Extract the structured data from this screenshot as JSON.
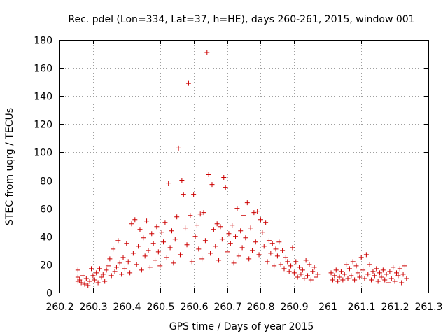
{
  "chart_data": {
    "type": "scatter",
    "title": "Rec. pdel (Lon=334, Lat=37, h=HE), days 260-261, 2015, window 001",
    "xlabel": "GPS time / Days of year 2015",
    "ylabel": "STEC from uqrg / TECUs",
    "xlim": [
      260.2,
      261.3
    ],
    "ylim": [
      0,
      180
    ],
    "xticks": [
      260.2,
      260.3,
      260.4,
      260.5,
      260.6,
      260.7,
      260.8,
      260.9,
      261,
      261.1,
      261.2,
      261.3
    ],
    "xtick_labels": [
      "260.2",
      "260.3",
      "260.4",
      "260.5",
      "260.6",
      "260.7",
      "260.8",
      "260.9",
      "261",
      "261.1",
      "261.2",
      "261.3"
    ],
    "yticks": [
      0,
      20,
      40,
      60,
      80,
      100,
      120,
      140,
      160,
      180
    ],
    "ytick_labels": [
      "0",
      "20",
      "40",
      "60",
      "80",
      "100",
      "120",
      "140",
      "160",
      "180"
    ],
    "grid": true,
    "marker": "+",
    "color": "#cc0000",
    "series": [
      {
        "name": "STEC",
        "points": [
          [
            260.255,
            16
          ],
          [
            260.255,
            11
          ],
          [
            260.255,
            8
          ],
          [
            260.26,
            9
          ],
          [
            260.265,
            7
          ],
          [
            260.27,
            12
          ],
          [
            260.275,
            6
          ],
          [
            260.28,
            10
          ],
          [
            260.285,
            5
          ],
          [
            260.29,
            8
          ],
          [
            260.295,
            17
          ],
          [
            260.3,
            12
          ],
          [
            260.305,
            9
          ],
          [
            260.31,
            14
          ],
          [
            260.315,
            7
          ],
          [
            260.32,
            17
          ],
          [
            260.325,
            11
          ],
          [
            260.33,
            13
          ],
          [
            260.335,
            8
          ],
          [
            260.34,
            16
          ],
          [
            260.345,
            19
          ],
          [
            260.35,
            24
          ],
          [
            260.355,
            12
          ],
          [
            260.36,
            31
          ],
          [
            260.365,
            15
          ],
          [
            260.37,
            18
          ],
          [
            260.375,
            37
          ],
          [
            260.38,
            21
          ],
          [
            260.385,
            13
          ],
          [
            260.39,
            25
          ],
          [
            260.395,
            17
          ],
          [
            260.4,
            35
          ],
          [
            260.405,
            22
          ],
          [
            260.41,
            14
          ],
          [
            260.415,
            49
          ],
          [
            260.42,
            28
          ],
          [
            260.425,
            52
          ],
          [
            260.43,
            20
          ],
          [
            260.435,
            33
          ],
          [
            260.44,
            45
          ],
          [
            260.445,
            16
          ],
          [
            260.45,
            39
          ],
          [
            260.455,
            26
          ],
          [
            260.46,
            51
          ],
          [
            260.465,
            30
          ],
          [
            260.47,
            18
          ],
          [
            260.475,
            42
          ],
          [
            260.48,
            35
          ],
          [
            260.485,
            23
          ],
          [
            260.49,
            47
          ],
          [
            260.495,
            29
          ],
          [
            260.5,
            19
          ],
          [
            260.505,
            43
          ],
          [
            260.51,
            36
          ],
          [
            260.515,
            50
          ],
          [
            260.52,
            25
          ],
          [
            260.525,
            78
          ],
          [
            260.53,
            32
          ],
          [
            260.535,
            44
          ],
          [
            260.54,
            21
          ],
          [
            260.545,
            38
          ],
          [
            260.55,
            54
          ],
          [
            260.555,
            103
          ],
          [
            260.56,
            27
          ],
          [
            260.565,
            80
          ],
          [
            260.57,
            70
          ],
          [
            260.575,
            46
          ],
          [
            260.58,
            34
          ],
          [
            260.585,
            149
          ],
          [
            260.59,
            55
          ],
          [
            260.595,
            22
          ],
          [
            260.6,
            70
          ],
          [
            260.605,
            40
          ],
          [
            260.61,
            48
          ],
          [
            260.615,
            31
          ],
          [
            260.62,
            56
          ],
          [
            260.625,
            24
          ],
          [
            260.63,
            57
          ],
          [
            260.635,
            37
          ],
          [
            260.64,
            171
          ],
          [
            260.645,
            84
          ],
          [
            260.65,
            28
          ],
          [
            260.655,
            77
          ],
          [
            260.66,
            45
          ],
          [
            260.665,
            33
          ],
          [
            260.67,
            49
          ],
          [
            260.675,
            23
          ],
          [
            260.68,
            47
          ],
          [
            260.685,
            38
          ],
          [
            260.69,
            82
          ],
          [
            260.695,
            75
          ],
          [
            260.7,
            29
          ],
          [
            260.705,
            42
          ],
          [
            260.71,
            35
          ],
          [
            260.715,
            48
          ],
          [
            260.72,
            21
          ],
          [
            260.725,
            40
          ],
          [
            260.73,
            60
          ],
          [
            260.735,
            26
          ],
          [
            260.74,
            44
          ],
          [
            260.745,
            32
          ],
          [
            260.75,
            55
          ],
          [
            260.755,
            39
          ],
          [
            260.76,
            64
          ],
          [
            260.765,
            24
          ],
          [
            260.77,
            46
          ],
          [
            260.775,
            30
          ],
          [
            260.78,
            57
          ],
          [
            260.785,
            36
          ],
          [
            260.79,
            58
          ],
          [
            260.795,
            27
          ],
          [
            260.8,
            52
          ],
          [
            260.805,
            43
          ],
          [
            260.81,
            33
          ],
          [
            260.815,
            50
          ],
          [
            260.82,
            22
          ],
          [
            260.825,
            37
          ],
          [
            260.83,
            28
          ],
          [
            260.835,
            35
          ],
          [
            260.84,
            19
          ],
          [
            260.845,
            31
          ],
          [
            260.85,
            26
          ],
          [
            260.855,
            36
          ],
          [
            260.86,
            20
          ],
          [
            260.865,
            30
          ],
          [
            260.87,
            17
          ],
          [
            260.875,
            25
          ],
          [
            260.88,
            22
          ],
          [
            260.885,
            15
          ],
          [
            260.89,
            19
          ],
          [
            260.895,
            32
          ],
          [
            260.9,
            14
          ],
          [
            260.905,
            22
          ],
          [
            260.91,
            11
          ],
          [
            260.915,
            18
          ],
          [
            260.92,
            13
          ],
          [
            260.925,
            16
          ],
          [
            260.93,
            10
          ],
          [
            260.935,
            23
          ],
          [
            260.94,
            12
          ],
          [
            260.945,
            20
          ],
          [
            260.95,
            9
          ],
          [
            260.955,
            15
          ],
          [
            260.96,
            18
          ],
          [
            260.965,
            11
          ],
          [
            260.97,
            13
          ],
          [
            261.01,
            14
          ],
          [
            261.015,
            9
          ],
          [
            261.02,
            12
          ],
          [
            261.025,
            16
          ],
          [
            261.03,
            8
          ],
          [
            261.035,
            11
          ],
          [
            261.04,
            15
          ],
          [
            261.045,
            9
          ],
          [
            261.05,
            13
          ],
          [
            261.055,
            20
          ],
          [
            261.06,
            10
          ],
          [
            261.065,
            17
          ],
          [
            261.07,
            12
          ],
          [
            261.075,
            22
          ],
          [
            261.08,
            9
          ],
          [
            261.085,
            19
          ],
          [
            261.09,
            14
          ],
          [
            261.095,
            11
          ],
          [
            261.1,
            25
          ],
          [
            261.105,
            16
          ],
          [
            261.11,
            10
          ],
          [
            261.115,
            27
          ],
          [
            261.12,
            13
          ],
          [
            261.125,
            20
          ],
          [
            261.13,
            9
          ],
          [
            261.135,
            15
          ],
          [
            261.14,
            12
          ],
          [
            261.145,
            17
          ],
          [
            261.15,
            8
          ],
          [
            261.155,
            14
          ],
          [
            261.16,
            11
          ],
          [
            261.165,
            16
          ],
          [
            261.17,
            9
          ],
          [
            261.175,
            13
          ],
          [
            261.18,
            7
          ],
          [
            261.185,
            15
          ],
          [
            261.19,
            10
          ],
          [
            261.195,
            18
          ],
          [
            261.2,
            8
          ],
          [
            261.205,
            14
          ],
          [
            261.21,
            12
          ],
          [
            261.215,
            17
          ],
          [
            261.22,
            7
          ],
          [
            261.225,
            13
          ],
          [
            261.23,
            19
          ],
          [
            261.235,
            10
          ]
        ]
      }
    ]
  }
}
